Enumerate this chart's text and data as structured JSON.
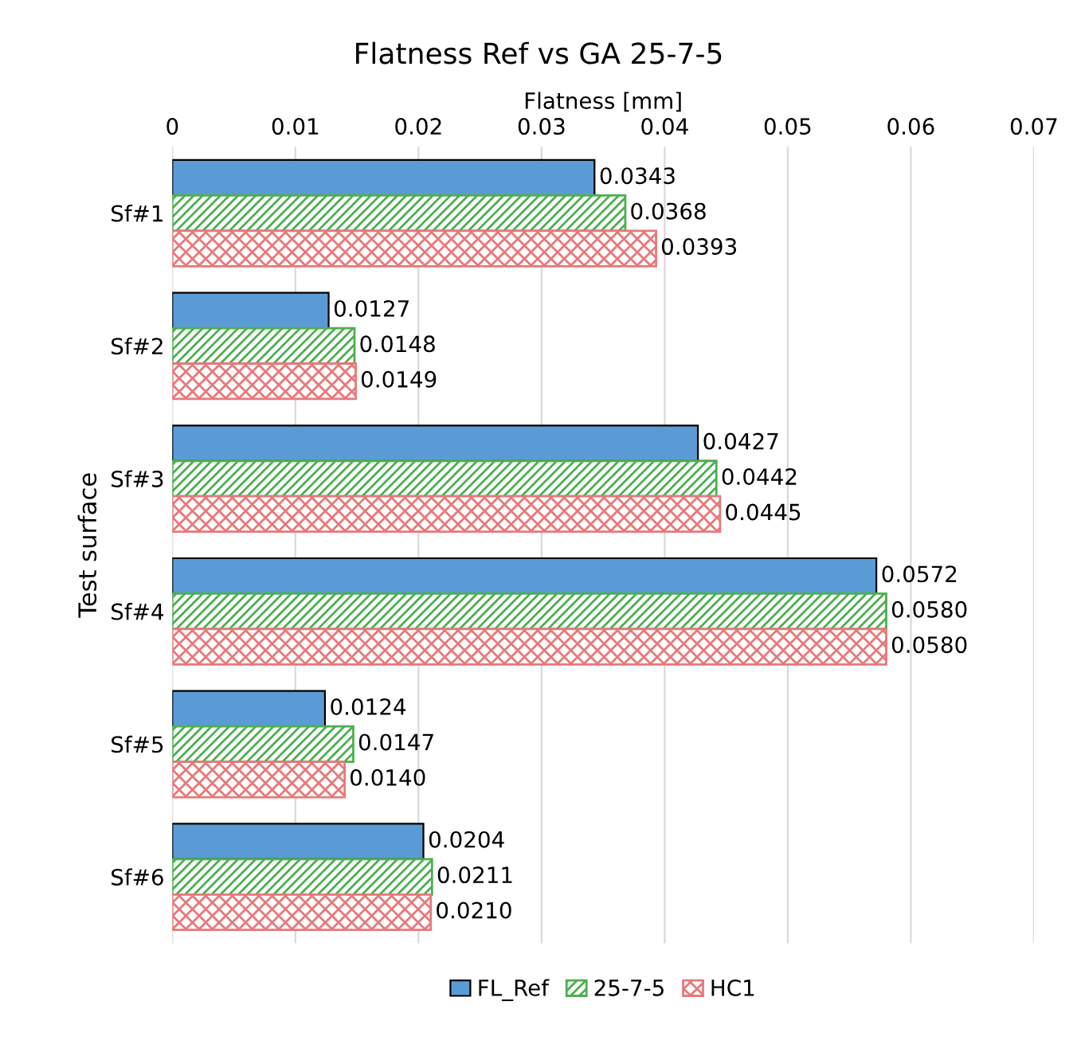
{
  "chart_data": {
    "type": "bar",
    "orientation": "horizontal",
    "title": "Flatness Ref vs GA 25-7-5",
    "xlabel": "Flatness [mm]",
    "ylabel": "Test surface",
    "categories": [
      "Sf#1",
      "Sf#2",
      "Sf#3",
      "Sf#4",
      "Sf#5",
      "Sf#6"
    ],
    "series": [
      {
        "name": "FL_Ref",
        "color": "#5b9bd5",
        "values": [
          0.0343,
          0.0127,
          0.0427,
          0.0572,
          0.0124,
          0.0204
        ],
        "value_labels": [
          "0.0343",
          "0.0127",
          "0.0427",
          "0.0572",
          "0.0124",
          "0.0204"
        ]
      },
      {
        "name": "25-7-5",
        "color": "#4caf50",
        "values": [
          0.0368,
          0.0148,
          0.0442,
          0.058,
          0.0147,
          0.0211
        ],
        "value_labels": [
          "0.0368",
          "0.0148",
          "0.0442",
          "0.0580",
          "0.0147",
          "0.0211"
        ]
      },
      {
        "name": "HC1",
        "color": "#e8787a",
        "values": [
          0.0393,
          0.0149,
          0.0445,
          0.058,
          0.014,
          0.021
        ],
        "value_labels": [
          "0.0393",
          "0.0149",
          "0.0445",
          "0.0580",
          "0.0140",
          "0.0210"
        ]
      }
    ],
    "xlim": [
      0,
      0.07
    ],
    "xticks": [
      0,
      0.01,
      0.02,
      0.03,
      0.04,
      0.05,
      0.06,
      0.07
    ],
    "grid": "x",
    "legend": "bottom"
  }
}
